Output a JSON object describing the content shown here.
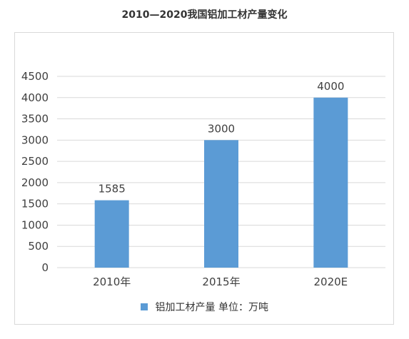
{
  "chart_data": {
    "type": "bar",
    "title": "2010—2020我国铝加工材产量变化",
    "categories": [
      "2010年",
      "2015年",
      "2020E"
    ],
    "series": [
      {
        "name": "铝加工材产量  单位：万吨",
        "values": [
          1585,
          3000,
          4000
        ],
        "color": "#5b9bd5"
      }
    ],
    "data_labels": [
      "1585",
      "3000",
      "4000"
    ],
    "ylim": [
      0,
      4500
    ],
    "yticks": [
      0,
      500,
      1000,
      1500,
      2000,
      2500,
      3000,
      3500,
      4000,
      4500
    ],
    "grid": true,
    "legend": "bottom"
  }
}
